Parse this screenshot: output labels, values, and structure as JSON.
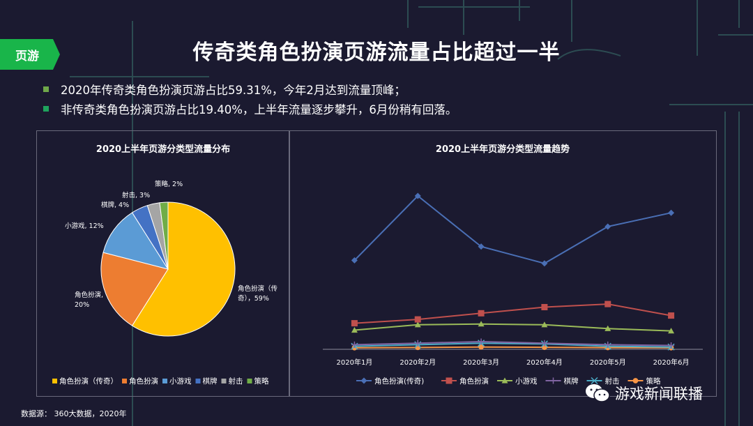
{
  "tag": "页游",
  "title": "传奇类角色扮演页游流量占比超过一半",
  "bullets": [
    {
      "text": "2020年传奇类角色扮演页游占比59.31%，今年2月达到流量顶峰；",
      "color": "#6fa84a"
    },
    {
      "text": "非传奇类角色扮演页游占比19.40%，上半年流量逐步攀升，6月份稍有回落。",
      "color": "#1fa35d"
    }
  ],
  "source": "数据源： 360大数据，2020年",
  "watermark": "游戏新闻联播",
  "chart_data": [
    {
      "type": "pie",
      "title": "2020上半年页游分类型流量分布",
      "slices": [
        {
          "name": "角色扮演（传奇）",
          "value": 59,
          "color": "#ffc000",
          "label": [
            "角色扮演（传",
            "奇），59%"
          ]
        },
        {
          "name": "角色扮演",
          "value": 20,
          "color": "#ed7d31",
          "label": [
            "角色扮演,",
            "20%"
          ]
        },
        {
          "name": "小游戏",
          "value": 12,
          "color": "#5b9bd5",
          "label": [
            "小游戏, 12%"
          ]
        },
        {
          "name": "棋牌",
          "value": 4,
          "color": "#4472c4",
          "label": [
            "棋牌, 4%"
          ]
        },
        {
          "name": "射击",
          "value": 3,
          "color": "#a5a5a5",
          "label": [
            "射击, 3%"
          ]
        },
        {
          "name": "策略",
          "value": 2,
          "color": "#70ad47",
          "label": [
            "策略, 2%"
          ]
        }
      ],
      "legend": [
        "角色扮演（传奇）",
        "角色扮演",
        "小游戏",
        "棋牌",
        "射击",
        "策略"
      ],
      "legend_position": "bottom"
    },
    {
      "type": "line",
      "title": "2020上半年页游分类型流量趋势",
      "categories": [
        "2020年1月",
        "2020年2月",
        "2020年3月",
        "2020年4月",
        "2020年5月",
        "2020年6月"
      ],
      "ylim": [
        0,
        100
      ],
      "grid": false,
      "series": [
        {
          "name": "角色扮演(传奇)",
          "color": "#4a6fb5",
          "marker": "diamond",
          "values": [
            58,
            100,
            67,
            56,
            80,
            89
          ]
        },
        {
          "name": "角色扮演",
          "color": "#c0504d",
          "marker": "square",
          "values": [
            17,
            19.5,
            23.5,
            27.5,
            29.5,
            22
          ]
        },
        {
          "name": "小游戏",
          "color": "#9bbb59",
          "marker": "triangle",
          "values": [
            12.5,
            16,
            16.5,
            16,
            13.5,
            12
          ]
        },
        {
          "name": "棋牌",
          "color": "#8064a2",
          "marker": "cross",
          "values": [
            3,
            4,
            5,
            4,
            3,
            2.5
          ]
        },
        {
          "name": "射击",
          "color": "#4bacc6",
          "marker": "x",
          "values": [
            2,
            3,
            4,
            3.5,
            2,
            1.5
          ]
        },
        {
          "name": "策略",
          "color": "#f79646",
          "marker": "circle",
          "values": [
            1,
            1.2,
            1.5,
            1.3,
            1.1,
            1
          ]
        }
      ],
      "legend_position": "bottom"
    }
  ]
}
